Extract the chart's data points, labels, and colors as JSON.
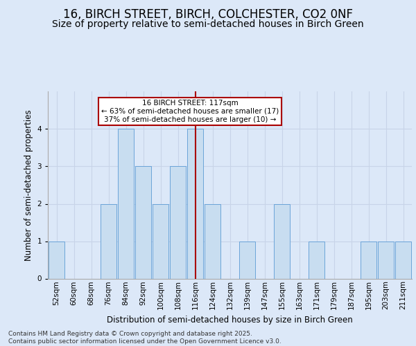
{
  "title": "16, BIRCH STREET, BIRCH, COLCHESTER, CO2 0NF",
  "subtitle": "Size of property relative to semi-detached houses in Birch Green",
  "xlabel": "Distribution of semi-detached houses by size in Birch Green",
  "ylabel": "Number of semi-detached properties",
  "categories": [
    "52sqm",
    "60sqm",
    "68sqm",
    "76sqm",
    "84sqm",
    "92sqm",
    "100sqm",
    "108sqm",
    "116sqm",
    "124sqm",
    "132sqm",
    "139sqm",
    "147sqm",
    "155sqm",
    "163sqm",
    "171sqm",
    "179sqm",
    "187sqm",
    "195sqm",
    "203sqm",
    "211sqm"
  ],
  "values": [
    1,
    0,
    0,
    2,
    4,
    3,
    2,
    3,
    4,
    2,
    0,
    1,
    0,
    2,
    0,
    1,
    0,
    0,
    1,
    1,
    1
  ],
  "highlight_index": 8,
  "bar_color": "#c8ddf0",
  "bar_edge_color": "#5b9bd5",
  "highlight_line_color": "#aa0000",
  "annotation_text": "16 BIRCH STREET: 117sqm\n← 63% of semi-detached houses are smaller (17)\n37% of semi-detached houses are larger (10) →",
  "annotation_box_color": "white",
  "annotation_box_edge": "#aa0000",
  "grid_color": "#c8d4e8",
  "bg_color": "#dce8f8",
  "fig_bg_color": "#dce8f8",
  "ylim": [
    0,
    5
  ],
  "yticks": [
    0,
    1,
    2,
    3,
    4
  ],
  "footer": "Contains HM Land Registry data © Crown copyright and database right 2025.\nContains public sector information licensed under the Open Government Licence v3.0.",
  "title_fontsize": 12,
  "subtitle_fontsize": 10,
  "label_fontsize": 8.5,
  "tick_fontsize": 7.5,
  "footer_fontsize": 6.5,
  "annotation_fontsize": 7.5
}
